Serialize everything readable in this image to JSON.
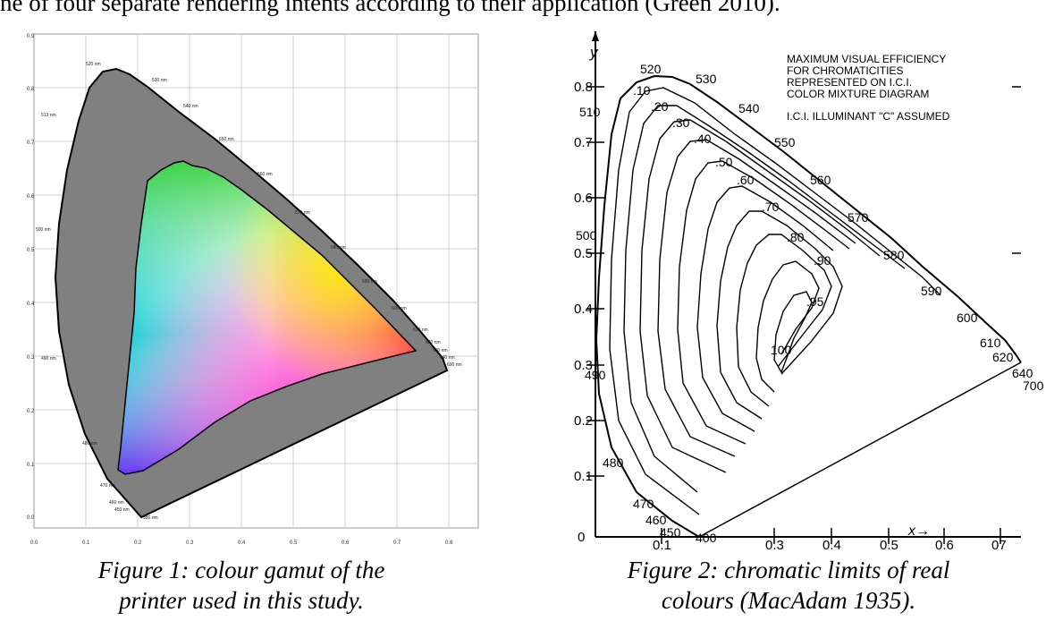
{
  "header": {
    "text": "ne of four separate rendering intents according to their application (Green 2010)."
  },
  "fig1": {
    "caption_line1": "Figure 1: colour gamut of the",
    "caption_line2": "printer used in this study.",
    "yticks": [
      "0.9",
      "0.8",
      "0.7",
      "0.6",
      "0.5",
      "0.4",
      "0.3",
      "0.2",
      "0.1",
      "0.0"
    ],
    "xticks": [
      "0.0",
      "0.1",
      "0.2",
      "0.3",
      "0.4",
      "0.5",
      "0.6",
      "0.7",
      "0.8"
    ],
    "wavelengths": [
      "520 nm",
      "530 nm",
      "540 nm",
      "513 nm",
      "550 nm",
      "560 nm",
      "500 nm",
      "570 nm",
      "580 nm",
      "590 nm",
      "600 nm",
      "610 nm",
      "620 nm",
      "630 nm",
      "640 nm",
      "690 nm",
      "490 nm",
      "480 nm",
      "470 nm",
      "460 nm",
      "450 nm",
      "380 nm"
    ]
  },
  "fig2": {
    "caption_line1": "Figure 2: chromatic limits of real",
    "caption_line2": "colours (MacAdam 1935).",
    "title_lines": [
      "MAXIMUM VISUAL EFFICIENCY",
      "FOR CHROMATICITIES",
      "REPRESENTED ON I.C.I.",
      "COLOR MIXTURE DIAGRAM"
    ],
    "illuminant": "I.C.I. ILLUMINANT \"C\" ASSUMED",
    "y_axis_label": "y",
    "x_axis_label": "x→",
    "yticks": [
      "0.8",
      "0.7",
      "0.6",
      "0.5",
      "0.4",
      "0.3",
      "0.2",
      "0.1",
      "0"
    ],
    "xticks": [
      "0.1",
      "0.3",
      "0.4",
      "0.5",
      "0.6",
      "07"
    ],
    "spectral": [
      "520",
      "530",
      "540",
      "510",
      "550",
      "560",
      "570",
      "500",
      "580",
      "590",
      "600",
      "610",
      "620",
      "640",
      "700",
      "490",
      "480",
      "470",
      "460",
      "450",
      "400"
    ],
    "efficiency": [
      ".10",
      ".20",
      ".30",
      ".40",
      ".50",
      ".60",
      ".70",
      ".80",
      ".90",
      ".95",
      "100"
    ]
  }
}
